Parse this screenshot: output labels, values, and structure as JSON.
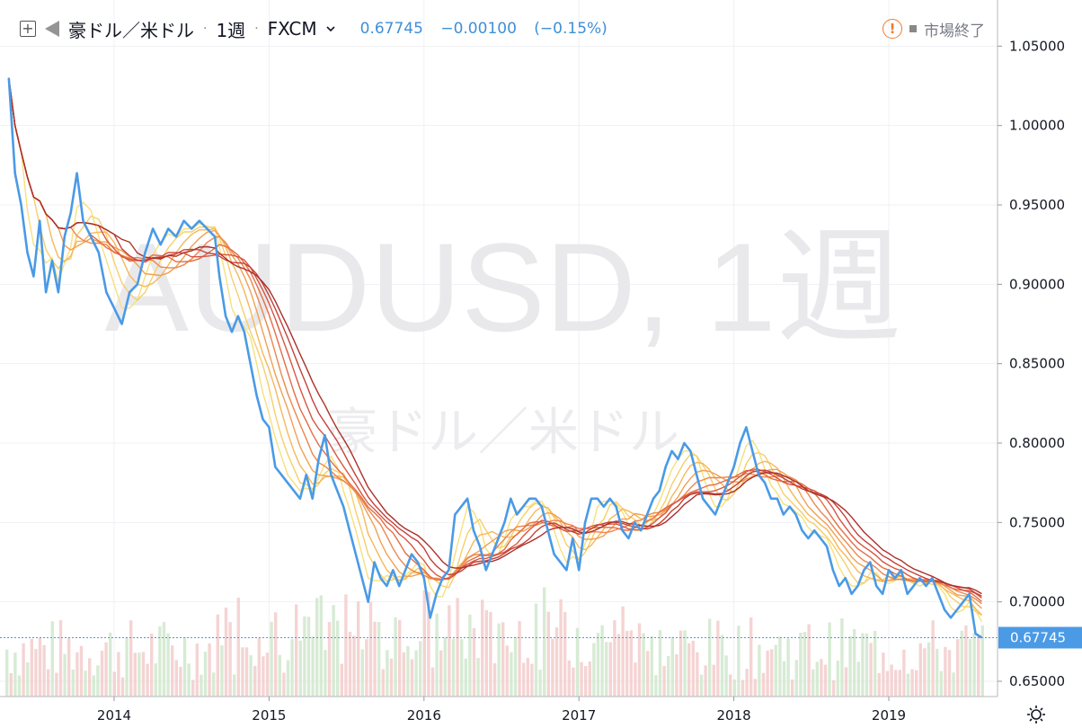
{
  "header": {
    "symbol": "豪ドル／米ドル",
    "separator": "·",
    "interval": "1週",
    "exchange": "FXCM",
    "price": "0.67745",
    "change": "−0.00100",
    "change_pct": "(−0.15%)",
    "market_status": "市場終了",
    "icons": [
      "add-symbol-icon",
      "flag-icon",
      "chevron-down-icon",
      "alert-icon",
      "status-dot-icon",
      "settings-icon"
    ]
  },
  "watermark": {
    "line1": "AUDUSD, 1週",
    "line2": "豪ドル／米ドル"
  },
  "price_label": "0.67745",
  "colors": {
    "price_line": "#4a9ae6",
    "ribbon": [
      "#f7e07c",
      "#f6cf6a",
      "#f4b85a",
      "#f19f52",
      "#ec864c",
      "#e46c46",
      "#d75540",
      "#c4403a",
      "#ab3027"
    ],
    "volume_up": "#c9e4c6",
    "volume_down": "#f1c6c6",
    "price_tag": "#4a9ae6"
  },
  "chart_data": {
    "type": "line",
    "y_axis_ticks": [
      "1.05000",
      "1.00000",
      "0.95000",
      "0.90000",
      "0.85000",
      "0.80000",
      "0.75000",
      "0.70000",
      "0.65000"
    ],
    "x_axis_ticks": [
      "2014",
      "2015",
      "2016",
      "2017",
      "2018",
      "2019"
    ],
    "ylim": [
      0.643,
      1.078
    ],
    "xlim": [
      2013.3,
      2019.72
    ],
    "series": [
      {
        "kind": "price",
        "points": [
          [
            2013.32,
            1.03
          ],
          [
            2013.36,
            0.97
          ],
          [
            2013.4,
            0.95
          ],
          [
            2013.44,
            0.92
          ],
          [
            2013.48,
            0.905
          ],
          [
            2013.52,
            0.94
          ],
          [
            2013.56,
            0.895
          ],
          [
            2013.6,
            0.915
          ],
          [
            2013.64,
            0.895
          ],
          [
            2013.68,
            0.93
          ],
          [
            2013.72,
            0.945
          ],
          [
            2013.76,
            0.97
          ],
          [
            2013.8,
            0.94
          ],
          [
            2013.85,
            0.93
          ],
          [
            2013.9,
            0.92
          ],
          [
            2013.95,
            0.895
          ],
          [
            2014.0,
            0.885
          ],
          [
            2014.05,
            0.875
          ],
          [
            2014.1,
            0.895
          ],
          [
            2014.15,
            0.9
          ],
          [
            2014.2,
            0.92
          ],
          [
            2014.25,
            0.935
          ],
          [
            2014.3,
            0.925
          ],
          [
            2014.35,
            0.935
          ],
          [
            2014.4,
            0.93
          ],
          [
            2014.45,
            0.94
          ],
          [
            2014.5,
            0.935
          ],
          [
            2014.55,
            0.94
          ],
          [
            2014.6,
            0.935
          ],
          [
            2014.65,
            0.93
          ],
          [
            2014.68,
            0.905
          ],
          [
            2014.72,
            0.88
          ],
          [
            2014.76,
            0.87
          ],
          [
            2014.8,
            0.88
          ],
          [
            2014.84,
            0.87
          ],
          [
            2014.88,
            0.85
          ],
          [
            2014.92,
            0.83
          ],
          [
            2014.96,
            0.815
          ],
          [
            2015.0,
            0.81
          ],
          [
            2015.04,
            0.785
          ],
          [
            2015.08,
            0.78
          ],
          [
            2015.12,
            0.775
          ],
          [
            2015.16,
            0.77
          ],
          [
            2015.2,
            0.765
          ],
          [
            2015.24,
            0.78
          ],
          [
            2015.28,
            0.765
          ],
          [
            2015.32,
            0.79
          ],
          [
            2015.36,
            0.805
          ],
          [
            2015.4,
            0.78
          ],
          [
            2015.44,
            0.77
          ],
          [
            2015.48,
            0.76
          ],
          [
            2015.52,
            0.745
          ],
          [
            2015.56,
            0.73
          ],
          [
            2015.6,
            0.715
          ],
          [
            2015.64,
            0.7
          ],
          [
            2015.68,
            0.725
          ],
          [
            2015.72,
            0.715
          ],
          [
            2015.76,
            0.71
          ],
          [
            2015.8,
            0.72
          ],
          [
            2015.84,
            0.71
          ],
          [
            2015.88,
            0.72
          ],
          [
            2015.92,
            0.73
          ],
          [
            2015.96,
            0.725
          ],
          [
            2016.0,
            0.715
          ],
          [
            2016.04,
            0.69
          ],
          [
            2016.08,
            0.705
          ],
          [
            2016.12,
            0.715
          ],
          [
            2016.16,
            0.72
          ],
          [
            2016.2,
            0.755
          ],
          [
            2016.24,
            0.76
          ],
          [
            2016.28,
            0.765
          ],
          [
            2016.32,
            0.745
          ],
          [
            2016.36,
            0.735
          ],
          [
            2016.4,
            0.72
          ],
          [
            2016.44,
            0.73
          ],
          [
            2016.48,
            0.74
          ],
          [
            2016.52,
            0.75
          ],
          [
            2016.56,
            0.765
          ],
          [
            2016.6,
            0.755
          ],
          [
            2016.64,
            0.76
          ],
          [
            2016.68,
            0.765
          ],
          [
            2016.72,
            0.765
          ],
          [
            2016.76,
            0.76
          ],
          [
            2016.8,
            0.745
          ],
          [
            2016.84,
            0.73
          ],
          [
            2016.88,
            0.725
          ],
          [
            2016.92,
            0.72
          ],
          [
            2016.96,
            0.74
          ],
          [
            2017.0,
            0.72
          ],
          [
            2017.04,
            0.75
          ],
          [
            2017.08,
            0.765
          ],
          [
            2017.12,
            0.765
          ],
          [
            2017.16,
            0.76
          ],
          [
            2017.2,
            0.765
          ],
          [
            2017.24,
            0.76
          ],
          [
            2017.28,
            0.745
          ],
          [
            2017.32,
            0.74
          ],
          [
            2017.36,
            0.75
          ],
          [
            2017.4,
            0.745
          ],
          [
            2017.44,
            0.755
          ],
          [
            2017.48,
            0.765
          ],
          [
            2017.52,
            0.77
          ],
          [
            2017.56,
            0.785
          ],
          [
            2017.6,
            0.795
          ],
          [
            2017.64,
            0.79
          ],
          [
            2017.68,
            0.8
          ],
          [
            2017.72,
            0.795
          ],
          [
            2017.76,
            0.78
          ],
          [
            2017.8,
            0.765
          ],
          [
            2017.84,
            0.76
          ],
          [
            2017.88,
            0.755
          ],
          [
            2017.92,
            0.765
          ],
          [
            2017.96,
            0.775
          ],
          [
            2018.0,
            0.785
          ],
          [
            2018.04,
            0.8
          ],
          [
            2018.08,
            0.81
          ],
          [
            2018.12,
            0.795
          ],
          [
            2018.16,
            0.78
          ],
          [
            2018.2,
            0.775
          ],
          [
            2018.24,
            0.765
          ],
          [
            2018.28,
            0.765
          ],
          [
            2018.32,
            0.755
          ],
          [
            2018.36,
            0.76
          ],
          [
            2018.4,
            0.755
          ],
          [
            2018.44,
            0.745
          ],
          [
            2018.48,
            0.74
          ],
          [
            2018.52,
            0.745
          ],
          [
            2018.56,
            0.74
          ],
          [
            2018.6,
            0.735
          ],
          [
            2018.64,
            0.72
          ],
          [
            2018.68,
            0.71
          ],
          [
            2018.72,
            0.715
          ],
          [
            2018.76,
            0.705
          ],
          [
            2018.8,
            0.71
          ],
          [
            2018.84,
            0.72
          ],
          [
            2018.88,
            0.725
          ],
          [
            2018.92,
            0.71
          ],
          [
            2018.96,
            0.705
          ],
          [
            2019.0,
            0.72
          ],
          [
            2019.04,
            0.715
          ],
          [
            2019.08,
            0.72
          ],
          [
            2019.12,
            0.705
          ],
          [
            2019.16,
            0.71
          ],
          [
            2019.2,
            0.715
          ],
          [
            2019.24,
            0.71
          ],
          [
            2019.28,
            0.715
          ],
          [
            2019.32,
            0.705
          ],
          [
            2019.36,
            0.695
          ],
          [
            2019.4,
            0.69
          ],
          [
            2019.44,
            0.695
          ],
          [
            2019.48,
            0.7
          ],
          [
            2019.52,
            0.705
          ],
          [
            2019.56,
            0.68
          ],
          [
            2019.6,
            0.6775
          ]
        ]
      }
    ]
  }
}
